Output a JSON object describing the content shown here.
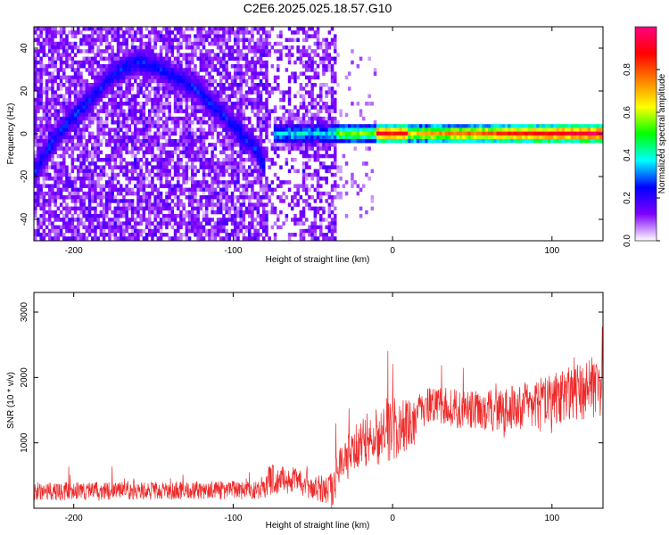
{
  "title": "C2E6.2025.025.18.57.G10",
  "colors": {
    "snr_line": "#ee2a2a",
    "axis": "#000000",
    "background": "#ffffff"
  },
  "colormap": [
    "#ffffff",
    "#7f00ff",
    "#0000ff",
    "#00ffff",
    "#00ff00",
    "#ffff00",
    "#ff8000",
    "#ff0000",
    "#ff0080"
  ],
  "chart_data": [
    {
      "type": "heatmap",
      "xlabel": "Height of straight line (km)",
      "ylabel": "Frequency (Hz)",
      "xlim": [
        -225,
        132
      ],
      "ylim": [
        -50,
        50
      ],
      "xticks": [
        -200,
        -100,
        0,
        100
      ],
      "yticks": [
        -40,
        -20,
        0,
        20,
        40
      ],
      "colorbar": {
        "label": "Normalized spectral amplitude",
        "range": [
          0,
          1
        ],
        "ticks": [
          0.0,
          0.2,
          0.4,
          0.6,
          0.8
        ]
      },
      "features": {
        "arch_left": {
          "points": [
            [
              -225,
              -18
            ],
            [
              -210,
              0
            ],
            [
              -195,
              12
            ],
            [
              -175,
              28
            ],
            [
              -160,
              34
            ],
            [
              -145,
              30
            ],
            [
              -125,
              22
            ],
            [
              -105,
              8
            ],
            [
              -85,
              -8
            ],
            [
              -80,
              -15
            ]
          ]
        },
        "carrier_line": {
          "x_range": [
            -75,
            132
          ],
          "frequency": 0
        },
        "noisy_region_end": -35,
        "blank_region": [
          -10,
          132
        ]
      }
    },
    {
      "type": "line",
      "xlabel": "Height of straight line (km)",
      "ylabel": "SNR (10 * v/v)",
      "xlim": [
        -225,
        132
      ],
      "ylim": [
        0,
        3300
      ],
      "xticks": [
        -200,
        -100,
        0,
        100
      ],
      "yticks": [
        1000,
        2000,
        3000
      ],
      "series": [
        {
          "profile": [
            [
              -225,
              260
            ],
            [
              -80,
              280
            ],
            [
              -78,
              450
            ],
            [
              -60,
              420
            ],
            [
              -52,
              300
            ],
            [
              -38,
              300
            ],
            [
              -32,
              700
            ],
            [
              -20,
              1000
            ],
            [
              -5,
              1150
            ],
            [
              10,
              1300
            ],
            [
              25,
              1600
            ],
            [
              45,
              1500
            ],
            [
              70,
              1500
            ],
            [
              100,
              1650
            ],
            [
              120,
              1800
            ],
            [
              132,
              1900
            ]
          ],
          "noise_band": [
            [
              -225,
              200
            ],
            [
              -80,
              200
            ],
            [
              -78,
              350
            ],
            [
              -50,
              250
            ],
            [
              -30,
              500
            ],
            [
              0,
              700
            ],
            [
              20,
              400
            ],
            [
              60,
              450
            ],
            [
              132,
              700
            ]
          ]
        }
      ]
    }
  ]
}
